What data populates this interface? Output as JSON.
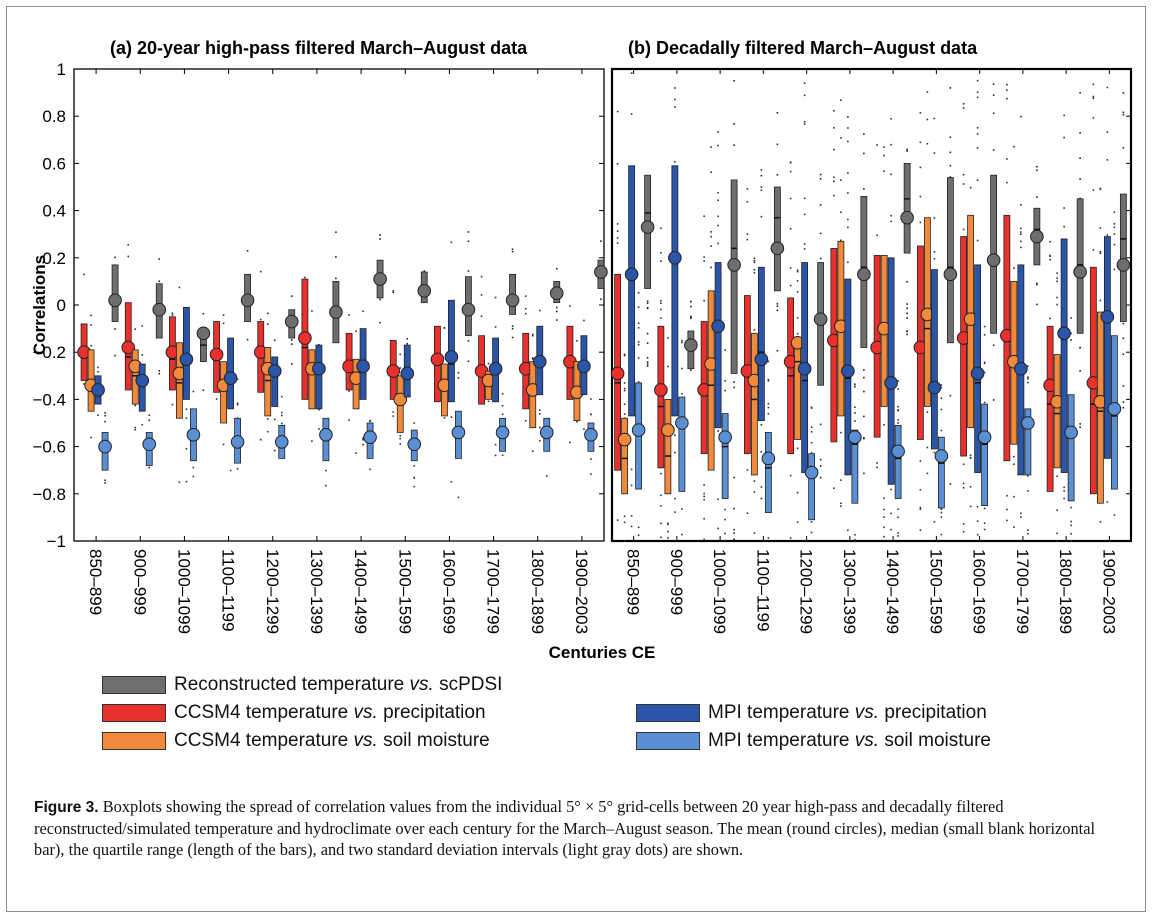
{
  "legend": {
    "items": [
      {
        "label_a": "Reconstructed temperature ",
        "label_vs": "vs.",
        "label_b": " scPDSI",
        "color": "#6e6e6e"
      },
      {
        "label_a": "CCSM4 temperature ",
        "label_vs": "vs.",
        "label_b": " precipitation",
        "color": "#e8302c"
      },
      {
        "label_a": "CCSM4 temperature ",
        "label_vs": "vs.",
        "label_b": " soil moisture",
        "color": "#f28a3c"
      },
      {
        "label_a": "MPI temperature ",
        "label_vs": "vs.",
        "label_b": " precipitation",
        "color": "#2a55a8"
      },
      {
        "label_a": "MPI temperature ",
        "label_vs": "vs.",
        "label_b": " soil moisture",
        "color": "#5b8fd4"
      }
    ]
  },
  "caption": {
    "fig_label": "Figure 3.",
    "text": " Boxplots showing the spread of correlation values from the individual 5° × 5° grid-cells between 20 year high-pass and decadally filtered reconstructed/simulated temperature and hydroclimate over each century for the March–August season. The mean (round circles), median (small blank horizontal bar), the quartile range (length of the bars), and two standard deviation intervals (light gray dots) are shown."
  },
  "chart_data": {
    "type": "box",
    "ylabel": "Correlations",
    "xlabel": "Centuries CE",
    "ylim": [
      -1,
      1
    ],
    "yticks": [
      -1,
      -0.8,
      -0.6,
      -0.4,
      -0.2,
      0,
      0.2,
      0.4,
      0.6,
      0.8,
      1
    ],
    "ytick_labels": [
      "−1",
      "−0.8",
      "−0.6",
      "−0.4",
      "−0.2",
      "0",
      "0.2",
      "0.4",
      "0.6",
      "0.8",
      "1"
    ],
    "categories": [
      "850–899",
      "900–999",
      "1000–1099",
      "1100–1199",
      "1200–1299",
      "1300–1399",
      "1400–1499",
      "1500–1599",
      "1600–1699",
      "1700–1799",
      "1800–1899",
      "1900–2003"
    ],
    "series_order": [
      "CCSM4 temperature vs. precipitation",
      "CCSM4 temperature vs. soil moisture",
      "MPI temperature vs. precipitation",
      "MPI temperature vs. soil moisture",
      "Reconstructed temperature vs. scPDSI"
    ],
    "colors": [
      "#e8302c",
      "#f28a3c",
      "#2a55a8",
      "#5b8fd4",
      "#6e6e6e"
    ],
    "panels": [
      {
        "title": "(a)  20-year high-pass filtered March–August data",
        "series": [
          {
            "name": "CCSM4 temperature vs. precipitation",
            "q1": [
              -0.32,
              -0.36,
              -0.36,
              -0.37,
              -0.37,
              -0.4,
              -0.36,
              -0.4,
              -0.41,
              -0.42,
              -0.44,
              -0.4
            ],
            "q3": [
              -0.08,
              0.01,
              -0.05,
              -0.07,
              -0.07,
              0.11,
              -0.12,
              -0.15,
              -0.09,
              -0.13,
              -0.12,
              -0.09
            ],
            "median": [
              -0.21,
              -0.22,
              -0.23,
              -0.23,
              -0.22,
              -0.18,
              -0.25,
              -0.3,
              -0.25,
              -0.28,
              -0.29,
              -0.26
            ],
            "mean": [
              -0.2,
              -0.18,
              -0.2,
              -0.21,
              -0.2,
              -0.14,
              -0.26,
              -0.28,
              -0.23,
              -0.28,
              -0.27,
              -0.24
            ]
          },
          {
            "name": "CCSM4 temperature vs. soil moisture",
            "q1": [
              -0.45,
              -0.42,
              -0.48,
              -0.5,
              -0.47,
              -0.44,
              -0.44,
              -0.54,
              -0.47,
              -0.4,
              -0.52,
              -0.49
            ],
            "q3": [
              -0.19,
              -0.19,
              -0.16,
              -0.24,
              -0.18,
              -0.19,
              -0.23,
              -0.3,
              -0.25,
              -0.28,
              -0.24,
              -0.24
            ],
            "median": [
              -0.33,
              -0.3,
              -0.33,
              -0.35,
              -0.32,
              -0.28,
              -0.32,
              -0.4,
              -0.36,
              -0.32,
              -0.37,
              -0.36
            ],
            "mean": [
              -0.34,
              -0.26,
              -0.29,
              -0.34,
              -0.27,
              -0.27,
              -0.31,
              -0.4,
              -0.34,
              -0.32,
              -0.36,
              -0.37
            ]
          },
          {
            "name": "MPI temperature vs. precipitation",
            "q1": [
              -0.42,
              -0.45,
              -0.4,
              -0.44,
              -0.43,
              -0.44,
              -0.4,
              -0.39,
              -0.41,
              -0.41,
              -0.38,
              -0.38
            ],
            "q3": [
              -0.3,
              -0.25,
              -0.01,
              -0.14,
              -0.22,
              -0.17,
              -0.1,
              -0.17,
              0.02,
              -0.14,
              -0.09,
              -0.13
            ],
            "median": [
              -0.37,
              -0.33,
              -0.24,
              -0.3,
              -0.28,
              -0.27,
              -0.26,
              -0.28,
              -0.25,
              -0.27,
              -0.25,
              -0.26
            ],
            "mean": [
              -0.36,
              -0.32,
              -0.23,
              -0.31,
              -0.28,
              -0.27,
              -0.26,
              -0.29,
              -0.22,
              -0.27,
              -0.24,
              -0.26
            ]
          },
          {
            "name": "MPI temperature vs. soil moisture",
            "q1": [
              -0.7,
              -0.68,
              -0.66,
              -0.67,
              -0.65,
              -0.66,
              -0.65,
              -0.66,
              -0.65,
              -0.62,
              -0.62,
              -0.62
            ],
            "q3": [
              -0.54,
              -0.54,
              -0.44,
              -0.48,
              -0.51,
              -0.48,
              -0.5,
              -0.53,
              -0.45,
              -0.48,
              -0.48,
              -0.5
            ],
            "median": [
              -0.62,
              -0.61,
              -0.55,
              -0.59,
              -0.58,
              -0.56,
              -0.58,
              -0.59,
              -0.55,
              -0.55,
              -0.55,
              -0.57
            ],
            "mean": [
              -0.6,
              -0.59,
              -0.55,
              -0.58,
              -0.58,
              -0.55,
              -0.56,
              -0.59,
              -0.54,
              -0.54,
              -0.54,
              -0.55
            ]
          },
          {
            "name": "Reconstructed temperature vs. scPDSI",
            "q1": [
              -0.07,
              -0.14,
              -0.24,
              -0.07,
              -0.14,
              -0.16,
              0.03,
              0.01,
              -0.13,
              -0.04,
              0.01,
              0.07
            ],
            "q3": [
              0.17,
              0.09,
              -0.1,
              0.13,
              -0.02,
              0.1,
              0.19,
              0.14,
              0.12,
              0.13,
              0.1,
              0.19
            ],
            "median": [
              0.04,
              -0.02,
              -0.17,
              0.03,
              -0.07,
              -0.03,
              0.12,
              0.07,
              -0.01,
              0.03,
              0.05,
              0.14
            ],
            "mean": [
              0.02,
              -0.02,
              -0.12,
              0.02,
              -0.07,
              -0.03,
              0.11,
              0.06,
              -0.02,
              0.02,
              0.05,
              0.14
            ]
          }
        ]
      },
      {
        "title": "(b)  Decadally filtered March–August data",
        "series": [
          {
            "name": "CCSM4 temperature vs. precipitation",
            "q1": [
              -0.7,
              -0.69,
              -0.63,
              -0.63,
              -0.63,
              -0.58,
              -0.56,
              -0.57,
              -0.64,
              -0.66,
              -0.79,
              -0.8
            ],
            "q3": [
              0.13,
              -0.09,
              -0.07,
              0.04,
              0.03,
              0.24,
              0.21,
              0.25,
              0.29,
              0.38,
              -0.09,
              0.16
            ],
            "median": [
              -0.33,
              -0.43,
              -0.38,
              -0.3,
              -0.3,
              -0.16,
              -0.18,
              -0.19,
              -0.16,
              -0.15,
              -0.42,
              -0.42
            ],
            "mean": [
              -0.29,
              -0.36,
              -0.36,
              -0.28,
              -0.24,
              -0.15,
              -0.18,
              -0.18,
              -0.14,
              -0.13,
              -0.34,
              -0.33
            ]
          },
          {
            "name": "CCSM4 temperature vs. soil moisture",
            "q1": [
              -0.8,
              -0.8,
              -0.7,
              -0.72,
              -0.57,
              -0.47,
              -0.43,
              -0.43,
              -0.52,
              -0.59,
              -0.69,
              -0.84
            ],
            "q3": [
              -0.48,
              -0.4,
              0.06,
              -0.12,
              -0.17,
              0.27,
              0.21,
              0.37,
              0.38,
              0.1,
              -0.21,
              -0.03
            ],
            "median": [
              -0.65,
              -0.64,
              -0.34,
              -0.4,
              -0.24,
              -0.1,
              -0.12,
              -0.1,
              -0.08,
              -0.24,
              -0.46,
              -0.45
            ],
            "mean": [
              -0.57,
              -0.53,
              -0.25,
              -0.32,
              -0.16,
              -0.09,
              -0.1,
              -0.04,
              -0.06,
              -0.24,
              -0.41,
              -0.41
            ]
          },
          {
            "name": "MPI temperature vs. precipitation",
            "q1": [
              -0.47,
              -0.47,
              -0.52,
              -0.49,
              -0.71,
              -0.72,
              -0.76,
              -0.61,
              -0.71,
              -0.72,
              -0.71,
              -0.65
            ],
            "q3": [
              0.59,
              0.59,
              0.18,
              0.16,
              0.18,
              0.11,
              0.2,
              0.15,
              0.17,
              0.17,
              0.28,
              0.29
            ],
            "median": [
              0.12,
              0.19,
              -0.11,
              -0.2,
              -0.32,
              -0.31,
              -0.35,
              -0.36,
              -0.33,
              -0.27,
              -0.1,
              -0.07
            ],
            "mean": [
              0.13,
              0.2,
              -0.09,
              -0.23,
              -0.27,
              -0.28,
              -0.33,
              -0.35,
              -0.29,
              -0.27,
              -0.12,
              -0.05
            ]
          },
          {
            "name": "MPI temperature vs. soil moisture",
            "q1": [
              -0.78,
              -0.79,
              -0.82,
              -0.88,
              -0.91,
              -0.84,
              -0.82,
              -0.86,
              -0.85,
              -0.72,
              -0.83,
              -0.78
            ],
            "q3": [
              -0.33,
              -0.39,
              -0.46,
              -0.54,
              -0.63,
              -0.53,
              -0.51,
              -0.56,
              -0.42,
              -0.44,
              -0.38,
              -0.13
            ],
            "median": [
              -0.54,
              -0.52,
              -0.6,
              -0.69,
              -0.73,
              -0.59,
              -0.65,
              -0.67,
              -0.59,
              -0.51,
              -0.55,
              -0.47
            ],
            "mean": [
              -0.53,
              -0.5,
              -0.56,
              -0.65,
              -0.71,
              -0.56,
              -0.62,
              -0.64,
              -0.56,
              -0.5,
              -0.54,
              -0.44
            ]
          },
          {
            "name": "Reconstructed temperature vs. scPDSI",
            "q1": [
              0.07,
              -0.27,
              -0.29,
              0.06,
              -0.34,
              -0.18,
              0.22,
              -0.16,
              -0.12,
              0.17,
              -0.12,
              -0.07
            ],
            "q3": [
              0.55,
              -0.11,
              0.53,
              0.5,
              0.18,
              0.46,
              0.6,
              0.54,
              0.55,
              0.41,
              0.45,
              0.47
            ],
            "median": [
              0.39,
              -0.16,
              0.24,
              0.37,
              -0.04,
              0.16,
              0.45,
              0.16,
              0.19,
              0.32,
              0.17,
              0.28
            ],
            "mean": [
              0.33,
              -0.17,
              0.17,
              0.24,
              -0.06,
              0.13,
              0.37,
              0.13,
              0.19,
              0.29,
              0.14,
              0.17
            ]
          }
        ]
      }
    ]
  }
}
